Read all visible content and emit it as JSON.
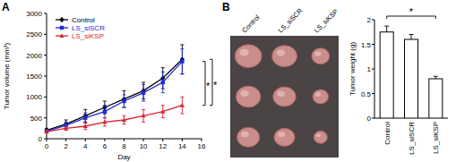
{
  "chart_data": [
    {
      "type": "line",
      "panel": "A",
      "y_label": "Tumor volume (mm³)",
      "x_label": "Day",
      "x": [
        0,
        2,
        4,
        6,
        8,
        10,
        12,
        14
      ],
      "xlim": [
        0,
        16
      ],
      "xticks": [
        0,
        2,
        4,
        6,
        8,
        10,
        12,
        14,
        16
      ],
      "ylim": [
        0,
        3000
      ],
      "yticks": [
        0,
        500,
        1000,
        1500,
        2000,
        2500,
        3000
      ],
      "legend": "upper left",
      "grid": false,
      "series": [
        {
          "name": "Control",
          "color": "#000000",
          "marker": "diamond",
          "values": [
            200,
            350,
            550,
            750,
            950,
            1150,
            1450,
            1900
          ],
          "errors": [
            50,
            100,
            150,
            150,
            200,
            200,
            250,
            350
          ]
        },
        {
          "name": "LS_siSCR",
          "color": "#1f2ad6",
          "marker": "square",
          "values": [
            180,
            320,
            500,
            650,
            900,
            1100,
            1350,
            1850
          ],
          "errors": [
            40,
            80,
            120,
            150,
            150,
            200,
            250,
            300
          ]
        },
        {
          "name": "LS_siKSP",
          "color": "#d6262e",
          "marker": "triangle",
          "values": [
            170,
            250,
            300,
            400,
            450,
            550,
            650,
            800
          ],
          "errors": [
            30,
            50,
            80,
            100,
            100,
            150,
            150,
            200
          ]
        }
      ],
      "significance": [
        {
          "between": [
            1,
            2
          ],
          "label": "*"
        },
        {
          "between": [
            0,
            2
          ],
          "label": "*"
        }
      ]
    },
    {
      "type": "image",
      "panel": "B",
      "labels": [
        "Control",
        "LS_siSCR",
        "LS_siKSP"
      ]
    },
    {
      "type": "bar",
      "y_label": "Tumor weight (g)",
      "categories": [
        "Control",
        "LS_siSCR",
        "LS_siKSP"
      ],
      "values": [
        1.75,
        1.6,
        0.8
      ],
      "errors": [
        0.12,
        0.1,
        0.05
      ],
      "color": "#ffffff",
      "ylim": [
        0,
        2
      ],
      "yticks": [
        0,
        0.5,
        1,
        1.5,
        2
      ],
      "grid": false,
      "significance": [
        {
          "between": [
            0,
            2
          ],
          "label": "*"
        }
      ]
    }
  ]
}
